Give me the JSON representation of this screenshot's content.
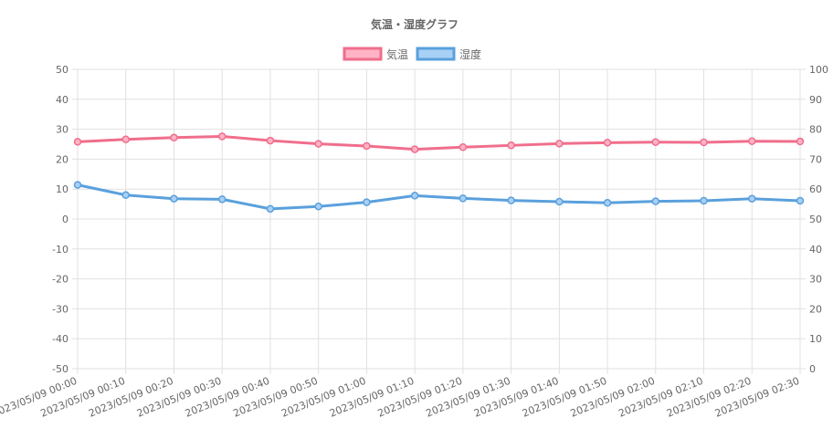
{
  "chart_data": {
    "type": "line",
    "title": "気温・湿度グラフ",
    "categories": [
      "2023/05/09 00:00",
      "2023/05/09 00:10",
      "2023/05/09 00:20",
      "2023/05/09 00:30",
      "2023/05/09 00:40",
      "2023/05/09 00:50",
      "2023/05/09 01:00",
      "2023/05/09 01:10",
      "2023/05/09 01:20",
      "2023/05/09 01:30",
      "2023/05/09 01:40",
      "2023/05/09 01:50",
      "2023/05/09 02:00",
      "2023/05/09 02:10",
      "2023/05/09 02:20",
      "2023/05/09 02:30"
    ],
    "series": [
      {
        "name": "気温",
        "axis": "left",
        "color": "#f06e8c",
        "fill": "#ffb3c4",
        "values": [
          25.8,
          26.6,
          27.2,
          27.6,
          26.2,
          25.1,
          24.4,
          23.3,
          24.0,
          24.6,
          25.2,
          25.5,
          25.7,
          25.6,
          26.0,
          25.9
        ]
      },
      {
        "name": "湿度",
        "axis": "right",
        "color": "#5aa0dc",
        "fill": "#a8d0f5",
        "values": [
          61.4,
          58.0,
          56.8,
          56.6,
          53.4,
          54.2,
          55.6,
          57.8,
          56.9,
          56.2,
          55.8,
          55.4,
          55.9,
          56.1,
          56.8,
          56.1
        ]
      }
    ],
    "y_left": {
      "min": -50,
      "max": 50,
      "ticks": [
        50,
        40,
        30,
        20,
        10,
        0,
        -10,
        -20,
        -30,
        -40,
        -50
      ]
    },
    "y_right": {
      "min": 0,
      "max": 100,
      "ticks": [
        100,
        90,
        80,
        70,
        60,
        50,
        40,
        30,
        20,
        10,
        0
      ]
    },
    "grid": true,
    "legend_position": "top"
  }
}
